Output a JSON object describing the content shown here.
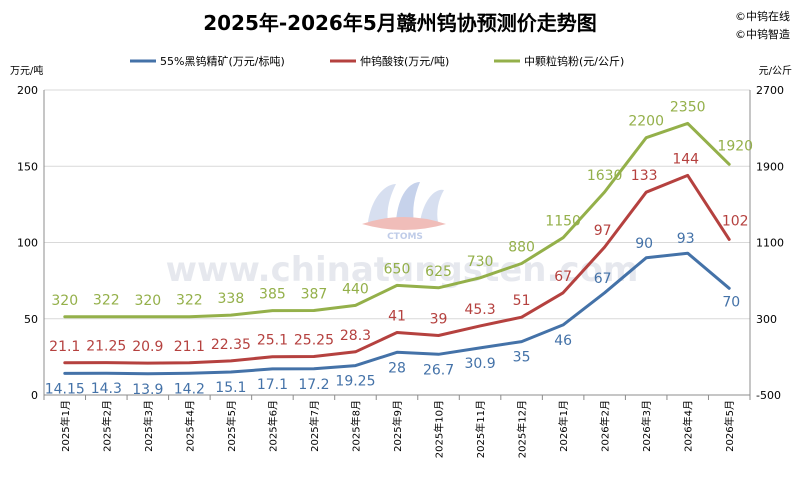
{
  "chart_data": {
    "type": "line",
    "title": "2025年-2026年5月赣州钨协预测价走势图",
    "brand": [
      "©中钨在线",
      "©中钨智造"
    ],
    "watermark": "www.chinatungsten.com",
    "watermark_logo_text": "CTOMS",
    "left_axis": {
      "label": "万元/吨",
      "ylim": [
        0,
        200
      ],
      "ticks": [
        "0",
        "50",
        "100",
        "150",
        "200"
      ]
    },
    "right_axis": {
      "label": "元/公斤",
      "ylim": [
        -500,
        2700
      ],
      "ticks": [
        "-500",
        "300",
        "1100",
        "1900",
        "2700"
      ]
    },
    "categories": [
      "2025年1月",
      "2025年2月",
      "2025年3月",
      "2025年4月",
      "2025年5月",
      "2025年6月",
      "2025年7月",
      "2025年8月",
      "2025年9月",
      "2025年10月",
      "2025年11月",
      "2025年12月",
      "2026年1月",
      "2026年2月",
      "2026年3月",
      "2026年4月",
      "2026年5月"
    ],
    "legend_position": "top",
    "grid": true,
    "series": [
      {
        "name": "55%黑钨精矿(万元/标吨)",
        "axis": "left",
        "color": "#4472a8",
        "values": [
          14.15,
          14.3,
          13.9,
          14.2,
          15.1,
          17.1,
          17.2,
          19.25,
          28,
          26.7,
          30.9,
          35,
          46,
          67,
          90,
          93,
          70
        ],
        "labels": [
          "14.15",
          "14.3",
          "13.9",
          "14.2",
          "15.1",
          "17.1",
          "17.2",
          "19.25",
          "28",
          "26.7",
          "30.9",
          "35",
          "46",
          "67",
          "90",
          "93",
          "70"
        ]
      },
      {
        "name": "仲钨酸铵(万元/吨)",
        "axis": "left",
        "color": "#b5413f",
        "values": [
          21.1,
          21.25,
          20.9,
          21.1,
          22.35,
          25.1,
          25.25,
          28.3,
          41,
          39,
          45.3,
          51,
          67,
          97,
          133,
          144,
          102
        ],
        "labels": [
          "21.1",
          "21.25",
          "20.9",
          "21.1",
          "22.35",
          "25.1",
          "25.25",
          "28.3",
          "41",
          "39",
          "45.3",
          "51",
          "67",
          "97",
          "133",
          "144",
          "102"
        ]
      },
      {
        "name": "中颗粒钨粉(元/公斤)",
        "axis": "right",
        "color": "#94b04a",
        "values": [
          320,
          322,
          320,
          322,
          338,
          385,
          387,
          440,
          650,
          625,
          730,
          880,
          1150,
          1630,
          2200,
          2350,
          1920
        ],
        "labels": [
          "320",
          "322",
          "320",
          "322",
          "338",
          "385",
          "387",
          "440",
          "650",
          "625",
          "730",
          "880",
          "1150",
          "1630",
          "2200",
          "2350",
          "1920"
        ]
      }
    ]
  }
}
